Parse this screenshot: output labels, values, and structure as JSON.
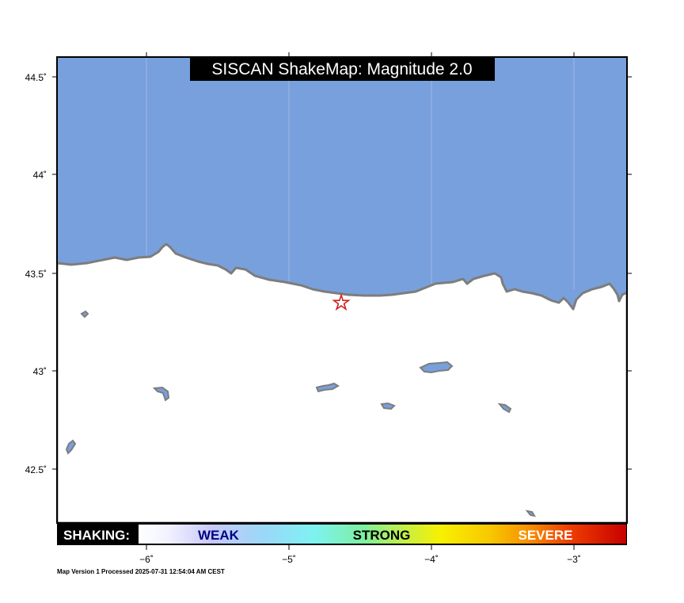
{
  "title": "SISCAN ShakeMap: Magnitude 2.0",
  "footer": "Map Version 1 Processed 2025-07-31 12:54:04 AM CEST",
  "legend": {
    "label": "SHAKING:",
    "weak": "WEAK",
    "strong": "STRONG",
    "severe": "SEVERE"
  },
  "axes": {
    "lat_ticks": [
      "44.5˚",
      "44˚",
      "43.5˚",
      "43˚",
      "42.5˚"
    ],
    "lon_ticks": [
      "−6˚",
      "−5˚",
      "−4˚",
      "−3˚"
    ]
  },
  "epicenter": {
    "lon": -4.64,
    "lat": 43.35,
    "marker": "star-icon"
  },
  "colors": {
    "sea": "#78a0dc",
    "land": "#ffffff",
    "coast": "#7d7d7d",
    "epicenter": "#d42020",
    "title_bg": "#000000"
  }
}
